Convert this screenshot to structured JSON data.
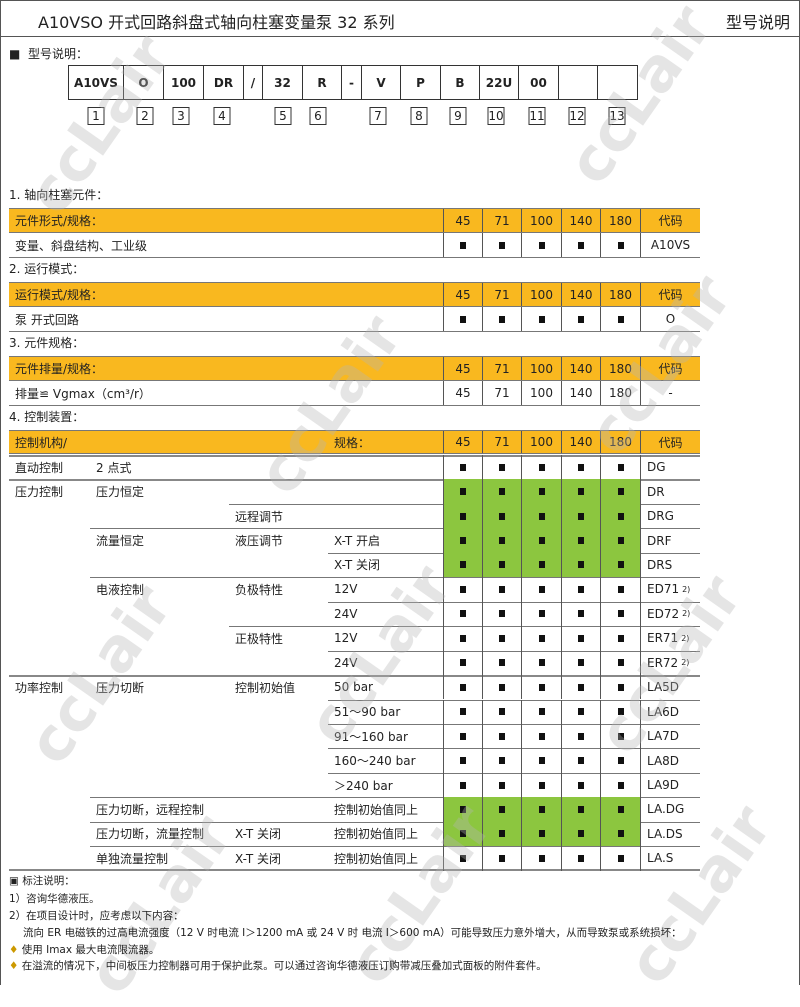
{
  "header": {
    "title": "A10VSO 开式回路斜盘式轴向柱塞变量泵  32 系列",
    "right": "型号说明"
  },
  "section_title": "型号说明：",
  "type_code": {
    "cells": [
      "A10VS",
      "O",
      "100",
      "DR",
      "/",
      "32",
      "R",
      "-",
      "V",
      "P",
      "B",
      "22U",
      "00",
      "",
      ""
    ],
    "numbers": [
      "1",
      "2",
      "3",
      "4",
      "5",
      "6",
      "7",
      "8",
      "9",
      "10",
      "11",
      "12",
      "13"
    ]
  },
  "sizes": [
    "45",
    "71",
    "100",
    "140",
    "180"
  ],
  "code_header": "代码",
  "colors": {
    "header": "#F9B81F",
    "highlight": "#8CC63F"
  },
  "watermark": "ccLair",
  "t1": {
    "title": "1.  轴向柱塞元件：",
    "head": "元件形式/规格：",
    "row": {
      "label": "变量、斜盘结构、工业级",
      "values": [
        "■",
        "■",
        "■",
        "■",
        "■"
      ],
      "code": "A10VS"
    }
  },
  "t2": {
    "title": "2.  运行模式：",
    "head": "运行模式/规格：",
    "row": {
      "label": "泵  开式回路",
      "values": [
        "■",
        "■",
        "■",
        "■",
        "■"
      ],
      "code": "O"
    }
  },
  "t3": {
    "title": "3.  元件规格：",
    "head": "元件排量/规格：",
    "row": {
      "label": "排量≌ Vgmax（cm³/r）",
      "values": [
        "45",
        "71",
        "100",
        "140",
        "180"
      ],
      "code": "-"
    }
  },
  "t4": {
    "title": "4.  控制装置：",
    "head_left": "控制机构/",
    "head_spec": "规格：",
    "rows": [
      {
        "c": [
          "直动控制",
          "2 点式",
          "",
          ""
        ],
        "code": "DG",
        "sup": "",
        "highlight": false
      },
      {
        "c": [
          "压力控制",
          "压力恒定",
          "",
          ""
        ],
        "code": "DR",
        "sup": "",
        "highlight": true
      },
      {
        "c": [
          "",
          "",
          "远程调节",
          ""
        ],
        "code": "DRG",
        "sup": "",
        "highlight": true
      },
      {
        "c": [
          "",
          "流量恒定",
          "液压调节",
          "X-T 开启"
        ],
        "code": "DRF",
        "sup": "",
        "highlight": true
      },
      {
        "c": [
          "",
          "",
          "",
          "X-T 关闭"
        ],
        "code": "DRS",
        "sup": "",
        "highlight": true
      },
      {
        "c": [
          "",
          "电液控制",
          "负极特性",
          "12V"
        ],
        "code": "ED71",
        "sup": "2)",
        "highlight": false
      },
      {
        "c": [
          "",
          "",
          "",
          "24V"
        ],
        "code": "ED72",
        "sup": "2)",
        "highlight": false
      },
      {
        "c": [
          "",
          "",
          "正极特性",
          "12V"
        ],
        "code": "ER71",
        "sup": "2)",
        "highlight": false
      },
      {
        "c": [
          "",
          "",
          "",
          "24V"
        ],
        "code": "ER72",
        "sup": "2)",
        "highlight": false
      },
      {
        "c": [
          "功率控制",
          "压力切断",
          "控制初始值",
          "50 bar"
        ],
        "code": "LA5D",
        "sup": "",
        "highlight": false
      },
      {
        "c": [
          "",
          "",
          "",
          "51～90 bar"
        ],
        "code": "LA6D",
        "sup": "",
        "highlight": false
      },
      {
        "c": [
          "",
          "",
          "",
          "91～160 bar"
        ],
        "code": "LA7D",
        "sup": "",
        "highlight": false
      },
      {
        "c": [
          "",
          "",
          "",
          "160～240 bar"
        ],
        "code": "LA8D",
        "sup": "",
        "highlight": false
      },
      {
        "c": [
          "",
          "",
          "",
          "＞240 bar"
        ],
        "code": "LA9D",
        "sup": "",
        "highlight": false
      },
      {
        "c": [
          "",
          "压力切断，远程控制",
          "",
          "控制初始值同上"
        ],
        "code": "LA.DG",
        "sup": "",
        "highlight": true
      },
      {
        "c": [
          "",
          "压力切断，流量控制",
          "X-T 关闭",
          "控制初始值同上"
        ],
        "code": "LA.DS",
        "sup": "",
        "highlight": true
      },
      {
        "c": [
          "",
          "单独流量控制",
          "X-T 关闭",
          "控制初始值同上"
        ],
        "code": "LA.S",
        "sup": "",
        "highlight": false
      }
    ]
  },
  "notes": {
    "title": "标注说明：",
    "items": [
      "1）咨询华德液压。",
      "2）在项目设计时，应考虑以下内容：",
      "流向 ER 电磁铁的过高电流强度（12 V 时电流 I＞1200 mA 或 24 V 时  电流 I＞600 mA）可能导致压力意外增大，从而导致泵或系统损坏：",
      "使用 Imax 最大电流限流器。",
      "在溢流的情况下，中间板压力控制器可用于保护此泵。可以通过咨询华德液压订购带减压叠加式面板的附件套件。"
    ]
  }
}
